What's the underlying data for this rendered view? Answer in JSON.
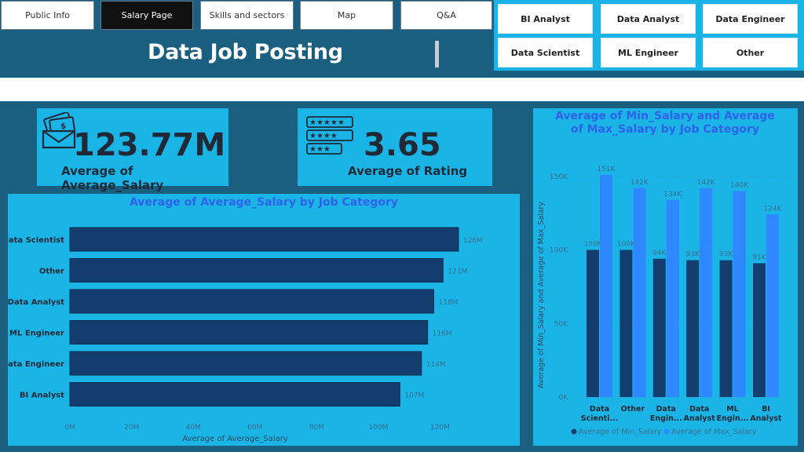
{
  "nav": {
    "tabs": [
      {
        "label": "Public Info"
      },
      {
        "label": "Salary Page",
        "active": true
      },
      {
        "label": "Skills and sectors"
      },
      {
        "label": "Map"
      },
      {
        "label": "Q&A"
      }
    ]
  },
  "header": {
    "title": "Data Job Posting"
  },
  "filters": {
    "buttons": [
      {
        "label": "BI Analyst"
      },
      {
        "label": "Data Analyst"
      },
      {
        "label": "Data Engineer"
      },
      {
        "label": "Data Scientist"
      },
      {
        "label": "ML Engineer"
      },
      {
        "label": "Other"
      }
    ]
  },
  "kpis": {
    "avg_salary": {
      "value": "123.77M",
      "label": "Average of Average_Salary",
      "icon": "money-envelope-icon"
    },
    "avg_rating": {
      "value": "3.65",
      "label": "Average of Rating",
      "icon": "star-rating-icon"
    }
  },
  "colors": {
    "background": "#1b5f80",
    "panel": "#1ab4e6",
    "bar_dark": "#123d6e",
    "bar_light": "#2f88ff",
    "title_blue": "#2f62e8"
  },
  "chart_data": [
    {
      "type": "bar",
      "orientation": "horizontal",
      "title": "Average of Average_Salary by Job Category",
      "xlabel": "Average of Average_Salary",
      "ylabel": "",
      "categories": [
        "Data Scientist",
        "Other",
        "Data Analyst",
        "ML Engineer",
        "Data Engineer",
        "BI Analyst"
      ],
      "values": [
        126,
        121,
        118,
        116,
        114,
        107
      ],
      "data_labels": [
        "126M",
        "121M",
        "118M",
        "116M",
        "114M",
        "107M"
      ],
      "xlim": [
        0,
        125
      ],
      "xticks": [
        "0M",
        "20M",
        "40M",
        "60M",
        "80M",
        "100M",
        "120M"
      ],
      "grid": false
    },
    {
      "type": "bar",
      "orientation": "vertical",
      "title": "Average of Min_Salary and Average of Max_Salary by Job Category",
      "xlabel": "",
      "ylabel": "Average of Min_Salary and Average of Max_Salary",
      "categories": [
        "Data Scienti...",
        "Other",
        "Data Engin...",
        "Data Analyst",
        "ML Engin...",
        "BI Analyst"
      ],
      "ylim": [
        0,
        160000
      ],
      "yticks": [
        "0K",
        "50K",
        "100K",
        "150K"
      ],
      "grid": true,
      "legend": "bottom",
      "series": [
        {
          "name": "Average of Min_Salary",
          "values": [
            100000,
            100000,
            94000,
            93000,
            93000,
            91000
          ],
          "labels": [
            "100K",
            "100K",
            "94K",
            "93K",
            "93K",
            "91K"
          ]
        },
        {
          "name": "Average of Max_Salary",
          "values": [
            151000,
            142000,
            134000,
            142000,
            140000,
            124000
          ],
          "labels": [
            "151K",
            "142K",
            "134K",
            "142K",
            "140K",
            "124K"
          ]
        }
      ]
    }
  ]
}
